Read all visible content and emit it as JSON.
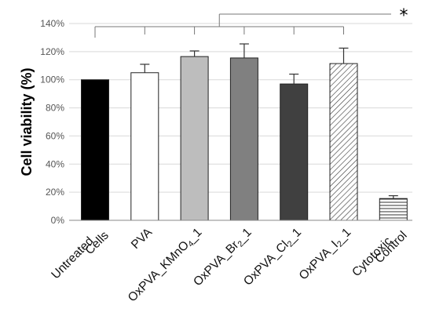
{
  "chart_data": {
    "type": "bar",
    "title": "",
    "xlabel": "",
    "ylabel": "Cell viability (%)",
    "ylim": [
      0,
      140
    ],
    "yticks": [
      "0%",
      "20%",
      "40%",
      "60%",
      "80%",
      "100%",
      "120%",
      "140%"
    ],
    "grid": "horizontal, light gray",
    "legend": "none",
    "categories": [
      {
        "label": [
          {
            "t": "Untreated"
          },
          {
            "t": "Cells"
          }
        ]
      },
      {
        "label": [
          {
            "t": "PVA"
          }
        ]
      },
      {
        "label": [
          {
            "t": "OxPVA_KMnO"
          },
          {
            "t": "4",
            "sub": true
          },
          {
            "t": "_1"
          }
        ]
      },
      {
        "label": [
          {
            "t": "OxPVA_Br"
          },
          {
            "t": "2",
            "sub": true
          },
          {
            "t": "_1"
          }
        ]
      },
      {
        "label": [
          {
            "t": "OxPVA_Cl"
          },
          {
            "t": "2",
            "sub": true
          },
          {
            "t": "_1"
          }
        ]
      },
      {
        "label": [
          {
            "t": "OxPVA_I"
          },
          {
            "t": "2",
            "sub": true
          },
          {
            "t": "_1"
          }
        ]
      },
      {
        "label": [
          {
            "t": "Cytotoxic"
          },
          {
            "t": "Control"
          }
        ]
      }
    ],
    "values": [
      100,
      105,
      116.5,
      115.5,
      97,
      111.5,
      15.5
    ],
    "errors": [
      0,
      6,
      4,
      10,
      7,
      11,
      2
    ],
    "fills": [
      "#000000",
      "#ffffff",
      "#bdbdbd",
      "#808080",
      "#404040",
      "hatch-diagonal",
      "hatch-horizontal"
    ],
    "significance": {
      "label": "*",
      "groups": [
        1,
        2,
        3,
        4,
        5
      ]
    }
  }
}
